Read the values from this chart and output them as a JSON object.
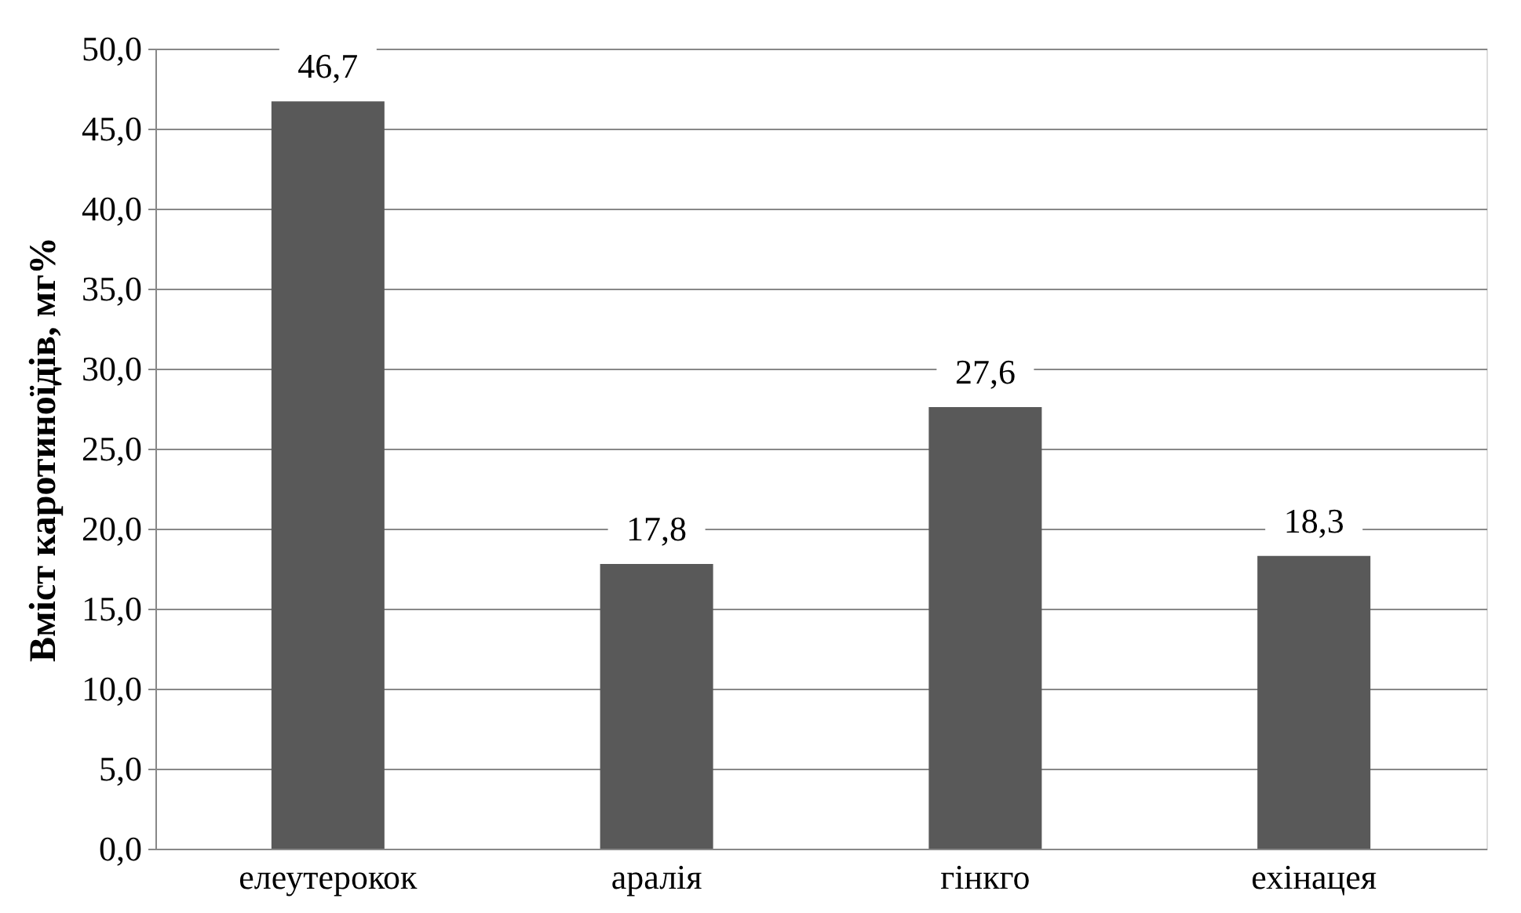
{
  "chart_data": {
    "type": "bar",
    "ylabel": "Вміст каротиноїдів, мг%",
    "categories": [
      "елеутерокок",
      "аралія",
      "гінкго",
      "ехінацея"
    ],
    "values": [
      46.7,
      17.8,
      27.6,
      18.3
    ],
    "value_labels": [
      "46,7",
      "17,8",
      "27,6",
      "18,3"
    ],
    "color": "#595959",
    "ylim": [
      0,
      50
    ],
    "yticks": [
      {
        "value": 0,
        "label": "0,0"
      },
      {
        "value": 5,
        "label": "5,0"
      },
      {
        "value": 10,
        "label": "10,0"
      },
      {
        "value": 15,
        "label": "15,0"
      },
      {
        "value": 20,
        "label": "20,0"
      },
      {
        "value": 25,
        "label": "25,0"
      },
      {
        "value": 30,
        "label": "30,0"
      },
      {
        "value": 35,
        "label": "35,0"
      },
      {
        "value": 40,
        "label": "40,0"
      },
      {
        "value": 45,
        "label": "45,0"
      },
      {
        "value": 50,
        "label": "50,0"
      }
    ],
    "grid": "y"
  }
}
